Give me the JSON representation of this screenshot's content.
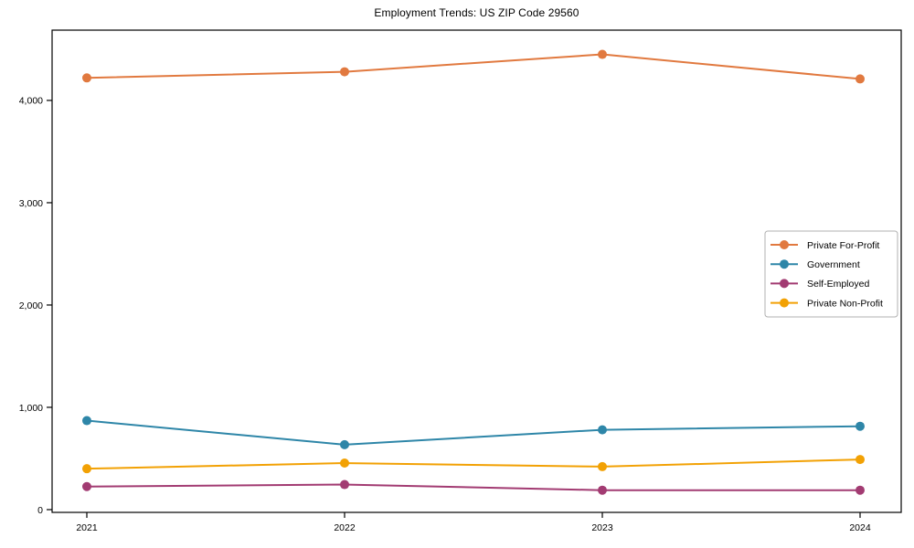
{
  "figure": {
    "background": "#ffffff",
    "axis_color": "#000000",
    "legend_border_color": "#b0b0b0"
  },
  "chart_data": {
    "type": "line",
    "title": "Employment Trends: US ZIP Code 29560",
    "xlabel": "",
    "ylabel": "",
    "x": [
      "2021",
      "2022",
      "2023",
      "2024"
    ],
    "ylim": [
      -27,
      4687
    ],
    "yticks": [
      {
        "value": 0,
        "label": "0"
      },
      {
        "value": 1000,
        "label": "1,000"
      },
      {
        "value": 2000,
        "label": "2,000"
      },
      {
        "value": 3000,
        "label": "3,000"
      },
      {
        "value": 4000,
        "label": "4,000"
      }
    ],
    "grid": false,
    "legend_position": "center-right",
    "marker": "circle",
    "series": [
      {
        "name": "Private For-Profit",
        "color": "#E1793F",
        "values": [
          4220,
          4280,
          4450,
          4210
        ]
      },
      {
        "name": "Government",
        "color": "#2E86A8",
        "values": [
          870,
          635,
          780,
          815
        ]
      },
      {
        "name": "Self-Employed",
        "color": "#A23B72",
        "values": [
          225,
          245,
          190,
          190
        ]
      },
      {
        "name": "Private Non-Profit",
        "color": "#F2A104",
        "values": [
          400,
          455,
          420,
          490
        ]
      }
    ]
  }
}
